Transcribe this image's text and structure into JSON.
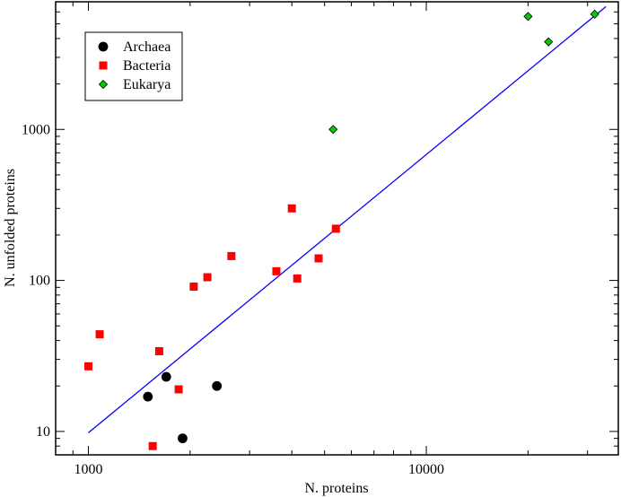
{
  "chart_data": {
    "type": "scatter",
    "title": "",
    "xlabel": "N. proteins",
    "ylabel": "N. unfolded proteins",
    "xscale": "log",
    "yscale": "log",
    "xlim": [
      800,
      37000
    ],
    "ylim": [
      7,
      7000
    ],
    "xticks_major": [
      1000,
      10000
    ],
    "xticks_labels": [
      "1000",
      "10000"
    ],
    "yticks_major": [
      10,
      100,
      1000
    ],
    "yticks_labels": [
      "10",
      "100",
      "1000"
    ],
    "legend_position": "top-left",
    "series": [
      {
        "name": "Archaea",
        "marker": "circle",
        "color": "#000000",
        "points": [
          {
            "x": 1500,
            "y": 17
          },
          {
            "x": 1700,
            "y": 23
          },
          {
            "x": 1900,
            "y": 9
          },
          {
            "x": 2400,
            "y": 20
          }
        ]
      },
      {
        "name": "Bacteria",
        "marker": "square",
        "color": "#ff0000",
        "points": [
          {
            "x": 1000,
            "y": 27
          },
          {
            "x": 1080,
            "y": 44
          },
          {
            "x": 1550,
            "y": 8
          },
          {
            "x": 1620,
            "y": 34
          },
          {
            "x": 1850,
            "y": 19
          },
          {
            "x": 2050,
            "y": 91
          },
          {
            "x": 2250,
            "y": 105
          },
          {
            "x": 2650,
            "y": 145
          },
          {
            "x": 3600,
            "y": 115
          },
          {
            "x": 4000,
            "y": 300
          },
          {
            "x": 4150,
            "y": 103
          },
          {
            "x": 4800,
            "y": 140
          },
          {
            "x": 5400,
            "y": 220
          }
        ]
      },
      {
        "name": "Eukarya",
        "marker": "diamond",
        "color": "#00cc00",
        "points": [
          {
            "x": 5300,
            "y": 1000
          },
          {
            "x": 20000,
            "y": 5600
          },
          {
            "x": 23000,
            "y": 3800
          },
          {
            "x": 31500,
            "y": 5800
          }
        ]
      }
    ],
    "fit_line": {
      "color": "#0000ff",
      "x1": 1000,
      "y1": 9.8,
      "x2": 34000,
      "y2": 6500
    }
  }
}
